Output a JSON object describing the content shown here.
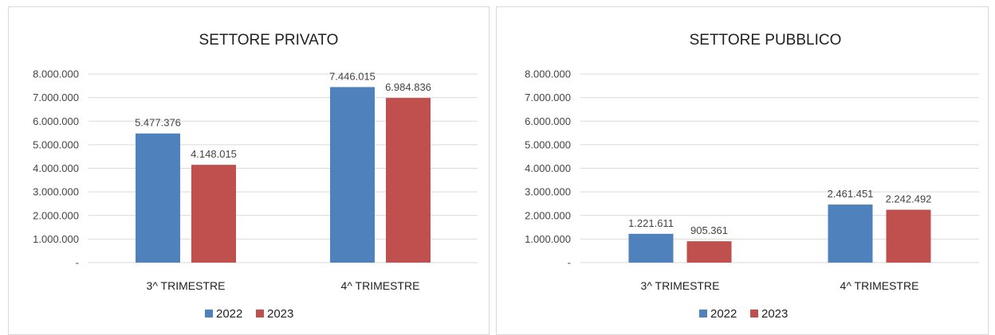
{
  "chart_data": [
    {
      "type": "bar",
      "title": "SETTORE PRIVATO",
      "categories": [
        "3^ TRIMESTRE",
        "4^ TRIMESTRE"
      ],
      "series": [
        {
          "name": "2022",
          "color": "#4f81bd",
          "values": [
            5477376,
            7446015
          ],
          "labels": [
            "5.477.376",
            "7.446.015"
          ]
        },
        {
          "name": "2023",
          "color": "#c0504d",
          "values": [
            4148015,
            6984836
          ],
          "labels": [
            "4.148.015",
            "6.984.836"
          ]
        }
      ],
      "ylim": [
        0,
        8000000
      ],
      "yticks": [
        {
          "value": 0,
          "label": "-"
        },
        {
          "value": 1000000,
          "label": "1.000.000"
        },
        {
          "value": 2000000,
          "label": "2.000.000"
        },
        {
          "value": 3000000,
          "label": "3.000.000"
        },
        {
          "value": 4000000,
          "label": "4.000.000"
        },
        {
          "value": 5000000,
          "label": "5.000.000"
        },
        {
          "value": 6000000,
          "label": "6.000.000"
        },
        {
          "value": 7000000,
          "label": "7.000.000"
        },
        {
          "value": 8000000,
          "label": "8.000.000"
        }
      ],
      "grid": true,
      "legend": "bottom"
    },
    {
      "type": "bar",
      "title": "SETTORE PUBBLICO",
      "categories": [
        "3^ TRIMESTRE",
        "4^ TRIMESTRE"
      ],
      "series": [
        {
          "name": "2022",
          "color": "#4f81bd",
          "values": [
            1221611,
            2461451
          ],
          "labels": [
            "1.221.611",
            "2.461.451"
          ]
        },
        {
          "name": "2023",
          "color": "#c0504d",
          "values": [
            905361,
            2242492
          ],
          "labels": [
            "905.361",
            "2.242.492"
          ]
        }
      ],
      "ylim": [
        0,
        8000000
      ],
      "yticks": [
        {
          "value": 0,
          "label": "-"
        },
        {
          "value": 1000000,
          "label": "1.000.000"
        },
        {
          "value": 2000000,
          "label": "2.000.000"
        },
        {
          "value": 3000000,
          "label": "3.000.000"
        },
        {
          "value": 4000000,
          "label": "4.000.000"
        },
        {
          "value": 5000000,
          "label": "5.000.000"
        },
        {
          "value": 6000000,
          "label": "6.000.000"
        },
        {
          "value": 7000000,
          "label": "7.000.000"
        },
        {
          "value": 8000000,
          "label": "8.000.000"
        }
      ],
      "grid": true,
      "legend": "bottom"
    }
  ]
}
